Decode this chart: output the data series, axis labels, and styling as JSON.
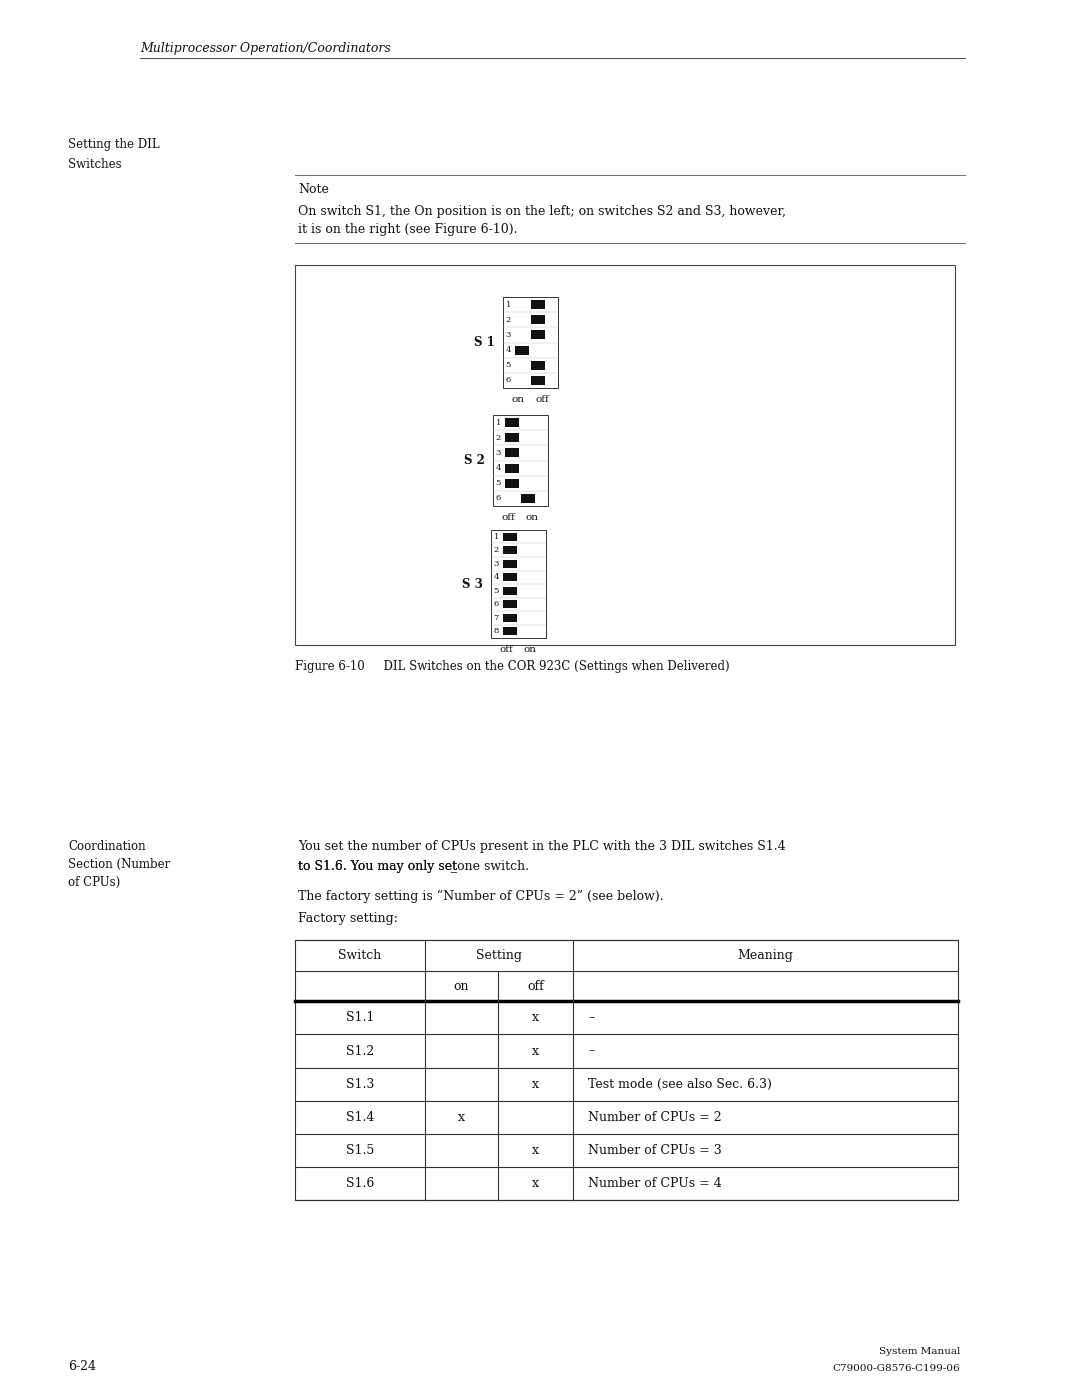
{
  "page_width": 10.8,
  "page_height": 13.97,
  "bg_color": "#ffffff",
  "header_italic": "Multiprocessor Operation/Coordinators",
  "sidebar_label1_line1": "Setting the DIL",
  "sidebar_label1_line2": "Switches",
  "note_label": "Note",
  "note_text_line1": "On switch S1, the On position is on the left; on switches S2 and S3, however,",
  "note_text_line2": "it is on the right (see Figure 6-10).",
  "figure_caption": "Figure 6-10     DIL Switches on the COR 923C (Settings when Delivered)",
  "sidebar_label2_line1": "Coordination",
  "sidebar_label2_line2": "Section (Number",
  "sidebar_label2_line3": "of CPUs)",
  "body_text1_line1": "You set the number of CPUs present in the PLC with the 3 DIL switches S1.4",
  "body_text1_line2": "to S1.6. You may only set̲one switch.",
  "body_text2": "The factory setting is “Number of CPUs = 2” (see below).",
  "body_text3": "Factory setting:",
  "footer_left": "6-24",
  "footer_right1": "System Manual",
  "footer_right2": "C79000-G8576-C199-06",
  "table_switches": [
    "S1.1",
    "S1.2",
    "S1.3",
    "S1.4",
    "S1.5",
    "S1.6"
  ],
  "table_on": [
    "",
    "",
    "",
    "x",
    "",
    ""
  ],
  "table_off": [
    "x",
    "x",
    "x",
    "",
    "x",
    "x"
  ],
  "table_meaning": [
    "–",
    "–",
    "Test mode (see also Sec. 6.3)",
    "Number of CPUs = 2",
    "Number of CPUs = 3",
    "Number of CPUs = 4"
  ],
  "s1_on_rows": [
    4
  ],
  "s2_on_rows": [
    6
  ],
  "s3_on_rows": []
}
